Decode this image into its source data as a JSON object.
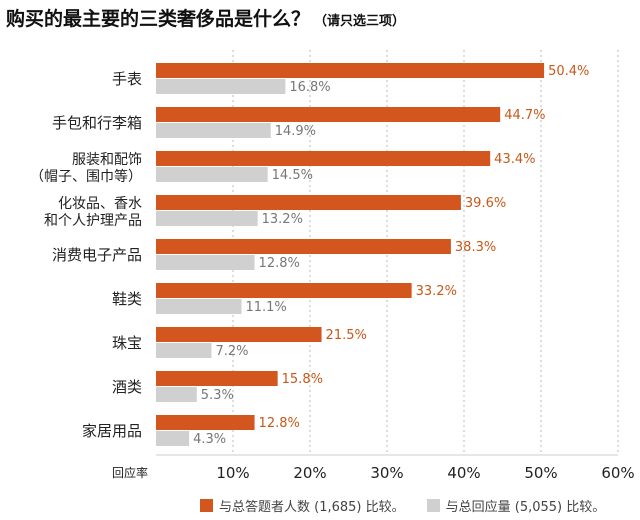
{
  "chart_data": {
    "type": "bar",
    "orientation": "horizontal",
    "title": "购买的最主要的三类奢侈品是什么？",
    "subtitle": "（请只选三项）",
    "xlabel": "回应率",
    "xlim": [
      0,
      60
    ],
    "xticks": [
      "10%",
      "20%",
      "30%",
      "40%",
      "50%",
      "60%"
    ],
    "xtick_values": [
      10,
      20,
      30,
      40,
      50,
      60
    ],
    "grid": true,
    "legend_position": "bottom",
    "categories": [
      [
        "手表"
      ],
      [
        "手包和行李箱"
      ],
      [
        "服装和配饰",
        "（帽子、围巾等）"
      ],
      [
        "化妆品、香水",
        "和个人护理产品"
      ],
      [
        "消费电子产品"
      ],
      [
        "鞋类"
      ],
      [
        "珠宝"
      ],
      [
        "酒类"
      ],
      [
        "家居用品"
      ]
    ],
    "series": [
      {
        "name": "与总答题者人数 (1,685) 比较。",
        "color": "#d4561f",
        "label_color": "#c8581a",
        "values": [
          50.4,
          44.7,
          43.4,
          39.6,
          38.3,
          33.2,
          21.5,
          15.8,
          12.8
        ],
        "labels": [
          "50.4%",
          "44.7%",
          "43.4%",
          "39.6%",
          "38.3%",
          "33.2%",
          "21.5%",
          "15.8%",
          "12.8%"
        ]
      },
      {
        "name": "与总回应量 (5,055) 比较。",
        "color": "#d0d0d0",
        "label_color": "#777777",
        "values": [
          16.8,
          14.9,
          14.5,
          13.2,
          12.8,
          11.1,
          7.2,
          5.3,
          4.3
        ],
        "labels": [
          "16.8%",
          "14.9%",
          "14.5%",
          "13.2%",
          "12.8%",
          "11.1%",
          "7.2%",
          "5.3%",
          "4.3%"
        ]
      }
    ]
  }
}
